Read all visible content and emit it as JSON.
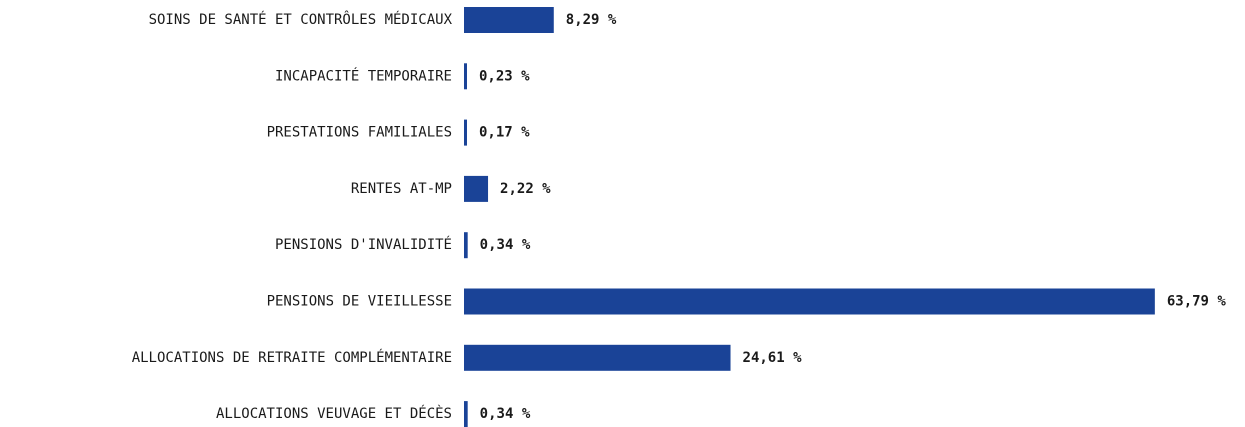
{
  "chart_data": {
    "type": "bar",
    "orientation": "horizontal",
    "color": "#1a4397",
    "categories": [
      "SOINS DE SANTÉ ET CONTRÔLES MÉDICAUX",
      "INCAPACITÉ TEMPORAIRE",
      "PRESTATIONS FAMILIALES",
      "RENTES AT-MP",
      "PENSIONS D'INVALIDITÉ",
      "PENSIONS DE VIEILLESSE",
      "ALLOCATIONS DE RETRAITE COMPLÉMENTAIRE",
      "ALLOCATIONS VEUVAGE ET DÉCÈS"
    ],
    "values": [
      8.29,
      0.23,
      0.17,
      2.22,
      0.34,
      63.79,
      24.61,
      0.34
    ],
    "value_labels": [
      "8,29 %",
      "0,23 %",
      "0,17 %",
      "2,22 %",
      "0,34 %",
      "63,79 %",
      "24,61 %",
      "0,34 %"
    ]
  }
}
